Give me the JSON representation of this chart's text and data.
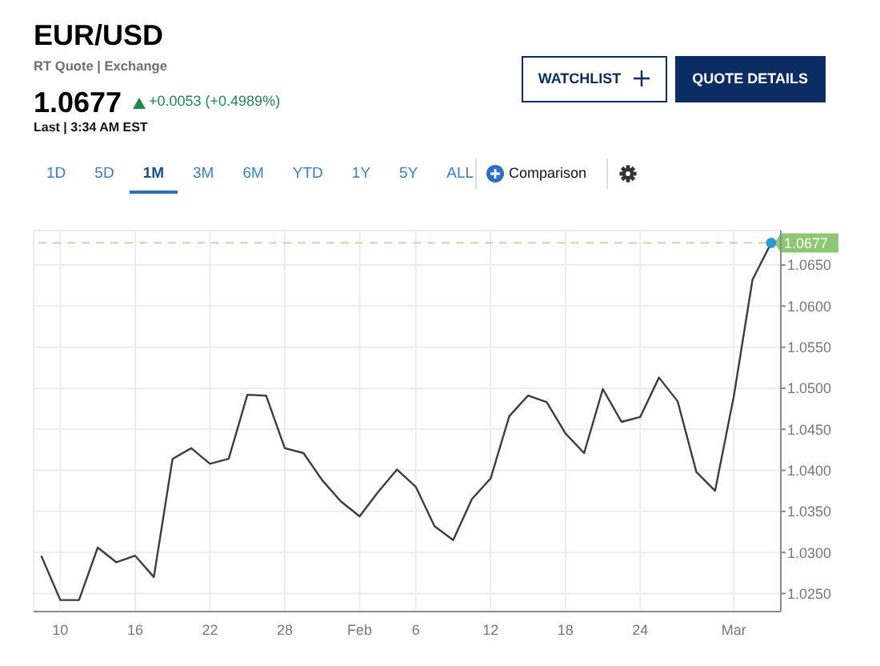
{
  "chart_data": {
    "type": "line",
    "title": "EUR/USD",
    "subtitle": "RT Quote | Exchange",
    "annotations": [
      "1.0677",
      "+0.0053 (+0.4989%)",
      "Last | 3:34 AM EST",
      "WATCHLIST",
      "QUOTE DETAILS",
      "1D",
      "5D",
      "1M",
      "3M",
      "6M",
      "YTD",
      "1Y",
      "5Y",
      "ALL",
      "Comparison"
    ],
    "categories": [
      null,
      "10",
      null,
      null,
      null,
      "16",
      null,
      null,
      null,
      "22",
      null,
      null,
      null,
      "28",
      null,
      null,
      null,
      "Feb",
      null,
      null,
      "6",
      null,
      null,
      null,
      "12",
      null,
      null,
      null,
      "18",
      null,
      null,
      null,
      "24",
      null,
      null,
      null,
      null,
      "Mar",
      null,
      null
    ],
    "series": [
      {
        "color": "#3d3d3d",
        "values": [
          1.0295,
          1.0242,
          1.0242,
          1.0306,
          1.0288,
          1.0296,
          1.027,
          1.0414,
          1.0427,
          1.0408,
          1.0414,
          1.0492,
          1.0491,
          1.0427,
          1.0421,
          1.0388,
          1.0362,
          1.0344,
          1.0374,
          1.0401,
          1.038,
          1.0332,
          1.0315,
          1.0365,
          1.039,
          1.0466,
          1.0491,
          1.0483,
          1.0445,
          1.0421,
          1.0499,
          1.0459,
          1.0465,
          1.0513,
          1.0484,
          1.0398,
          1.0375,
          1.049,
          1.0632,
          1.0677
        ]
      },
      {
        "type": "scatter",
        "color": "#2b9ad6",
        "marker": "circle",
        "values": [
          null,
          null,
          null,
          null,
          null,
          null,
          null,
          null,
          null,
          null,
          null,
          null,
          null,
          null,
          null,
          null,
          null,
          null,
          null,
          null,
          null,
          null,
          null,
          null,
          null,
          null,
          null,
          null,
          null,
          null,
          null,
          null,
          null,
          null,
          null,
          null,
          null,
          null,
          null,
          1.0677
        ]
      }
    ],
    "ylim": [
      1.0228,
      1.0692
    ],
    "yticks": [
      {
        "value": 1.025,
        "label": "1.0250"
      },
      {
        "value": 1.03,
        "label": "1.0300"
      },
      {
        "value": 1.035,
        "label": "1.0350"
      },
      {
        "value": 1.04,
        "label": "1.0400"
      },
      {
        "value": 1.045,
        "label": "1.0450"
      },
      {
        "value": 1.05,
        "label": "1.0500"
      },
      {
        "value": 1.055,
        "label": "1.0550"
      },
      {
        "value": 1.06,
        "label": "1.0600"
      },
      {
        "value": 1.065,
        "label": "1.0650"
      }
    ],
    "ref_lines": [
      {
        "axis": "y",
        "value": 1.0677,
        "label": "1.0677",
        "color": "#8cc774",
        "line_style": "dashed"
      }
    ],
    "grid": true,
    "line_style": "solid"
  }
}
